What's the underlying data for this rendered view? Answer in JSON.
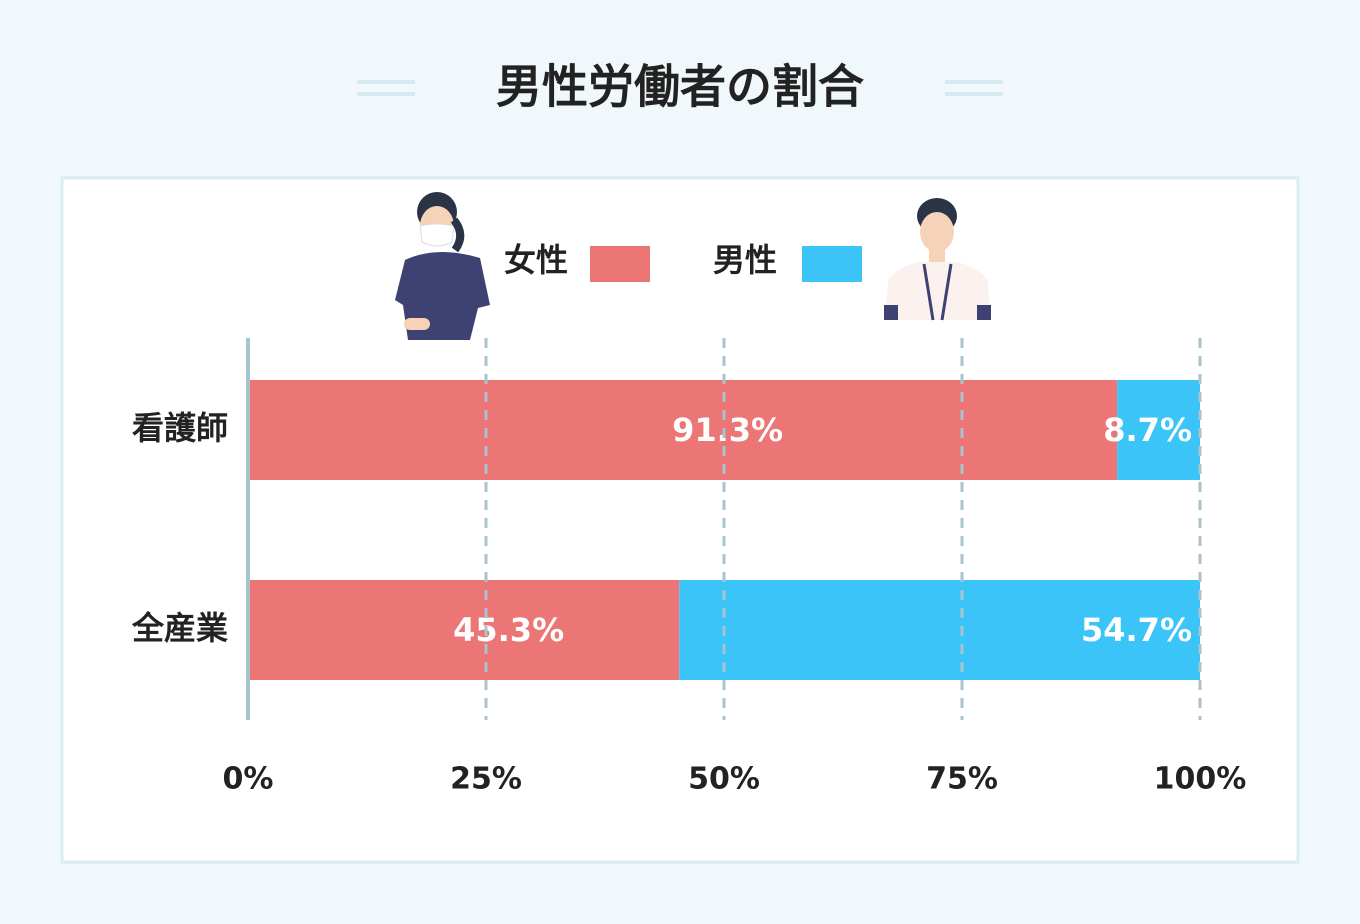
{
  "chart_data": {
    "type": "stacked_barh",
    "title": "男性労働者の割合",
    "categories": [
      "看護師",
      "全産業"
    ],
    "series": [
      {
        "name": "女性",
        "color": "#ec7575",
        "values": [
          91.3,
          45.3
        ],
        "value_labels": [
          "91.3%",
          "45.3%"
        ]
      },
      {
        "name": "男性",
        "color": "#3ac4f8",
        "values": [
          8.7,
          54.7
        ],
        "value_labels": [
          "8.7%",
          "54.7%"
        ]
      }
    ],
    "xlim": [
      0,
      100
    ],
    "xticks": [
      {
        "value": 0,
        "label": "0%"
      },
      {
        "value": 25,
        "label": "25%"
      },
      {
        "value": 50,
        "label": "50%"
      },
      {
        "value": 75,
        "label": "75%"
      },
      {
        "value": 100,
        "label": "100%"
      }
    ],
    "grid": true
  }
}
